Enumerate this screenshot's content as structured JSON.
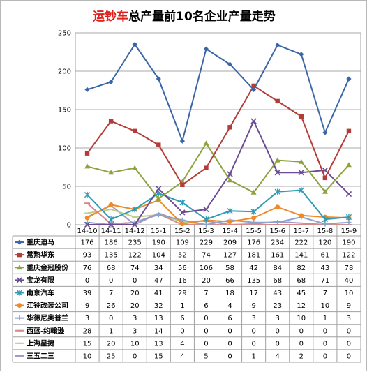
{
  "title": {
    "highlight": "运钞车",
    "rest": "总产量前10名企业产量走势"
  },
  "chart_data": {
    "type": "line",
    "title": "运钞车总产量前10名企业产量走势",
    "categories": [
      "14-10",
      "14-11",
      "14-12",
      "15-1",
      "15-2",
      "15-3",
      "15-4",
      "15-5",
      "15-6",
      "15-7",
      "15-8",
      "15-9"
    ],
    "ylim": [
      0,
      250
    ],
    "yticks": [
      0,
      50,
      100,
      150,
      200,
      250
    ],
    "grid": true,
    "legend": "data-table-below",
    "series": [
      {
        "name": "重庆迪马",
        "color": "#3a66a8",
        "marker": "diamond",
        "values": [
          176,
          186,
          235,
          190,
          109,
          229,
          209,
          176,
          234,
          222,
          120,
          190
        ]
      },
      {
        "name": "常熟华东",
        "color": "#b33b38",
        "marker": "square",
        "values": [
          93,
          135,
          122,
          104,
          52,
          74,
          127,
          181,
          161,
          141,
          61,
          122
        ]
      },
      {
        "name": "重庆金冠股份",
        "color": "#8ca33e",
        "marker": "triangle",
        "values": [
          76,
          68,
          74,
          34,
          56,
          106,
          58,
          42,
          84,
          82,
          43,
          78
        ]
      },
      {
        "name": "宝龙有限",
        "color": "#6b4b94",
        "marker": "x",
        "values": [
          0,
          0,
          0,
          47,
          16,
          20,
          66,
          135,
          68,
          68,
          71,
          40
        ]
      },
      {
        "name": "南京汽车",
        "color": "#2f9bb5",
        "marker": "star",
        "values": [
          39,
          7,
          20,
          41,
          29,
          7,
          18,
          17,
          43,
          45,
          7,
          10
        ]
      },
      {
        "name": "江铃改装公司",
        "color": "#ef8a2a",
        "marker": "circle",
        "values": [
          9,
          26,
          20,
          32,
          1,
          6,
          4,
          9,
          23,
          12,
          10,
          9
        ]
      },
      {
        "name": "华德尼奥普兰",
        "color": "#8aa2cc",
        "marker": "plus",
        "values": [
          3,
          0,
          3,
          13,
          6,
          0,
          6,
          3,
          3,
          10,
          1,
          3
        ]
      },
      {
        "name": "西蓝-约翰逊",
        "color": "#d48a88",
        "marker": "dash",
        "values": [
          28,
          1,
          3,
          14,
          0,
          0,
          0,
          0,
          0,
          0,
          0,
          0
        ]
      },
      {
        "name": "上海星捷",
        "color": "#bcd08a",
        "marker": "dash",
        "values": [
          15,
          20,
          10,
          13,
          4,
          0,
          0,
          0,
          0,
          0,
          0,
          0
        ]
      },
      {
        "name": "三五二三",
        "color": "#a594c4",
        "marker": "none",
        "values": [
          10,
          25,
          0,
          15,
          4,
          5,
          0,
          1,
          4,
          2,
          0,
          0
        ]
      }
    ]
  }
}
